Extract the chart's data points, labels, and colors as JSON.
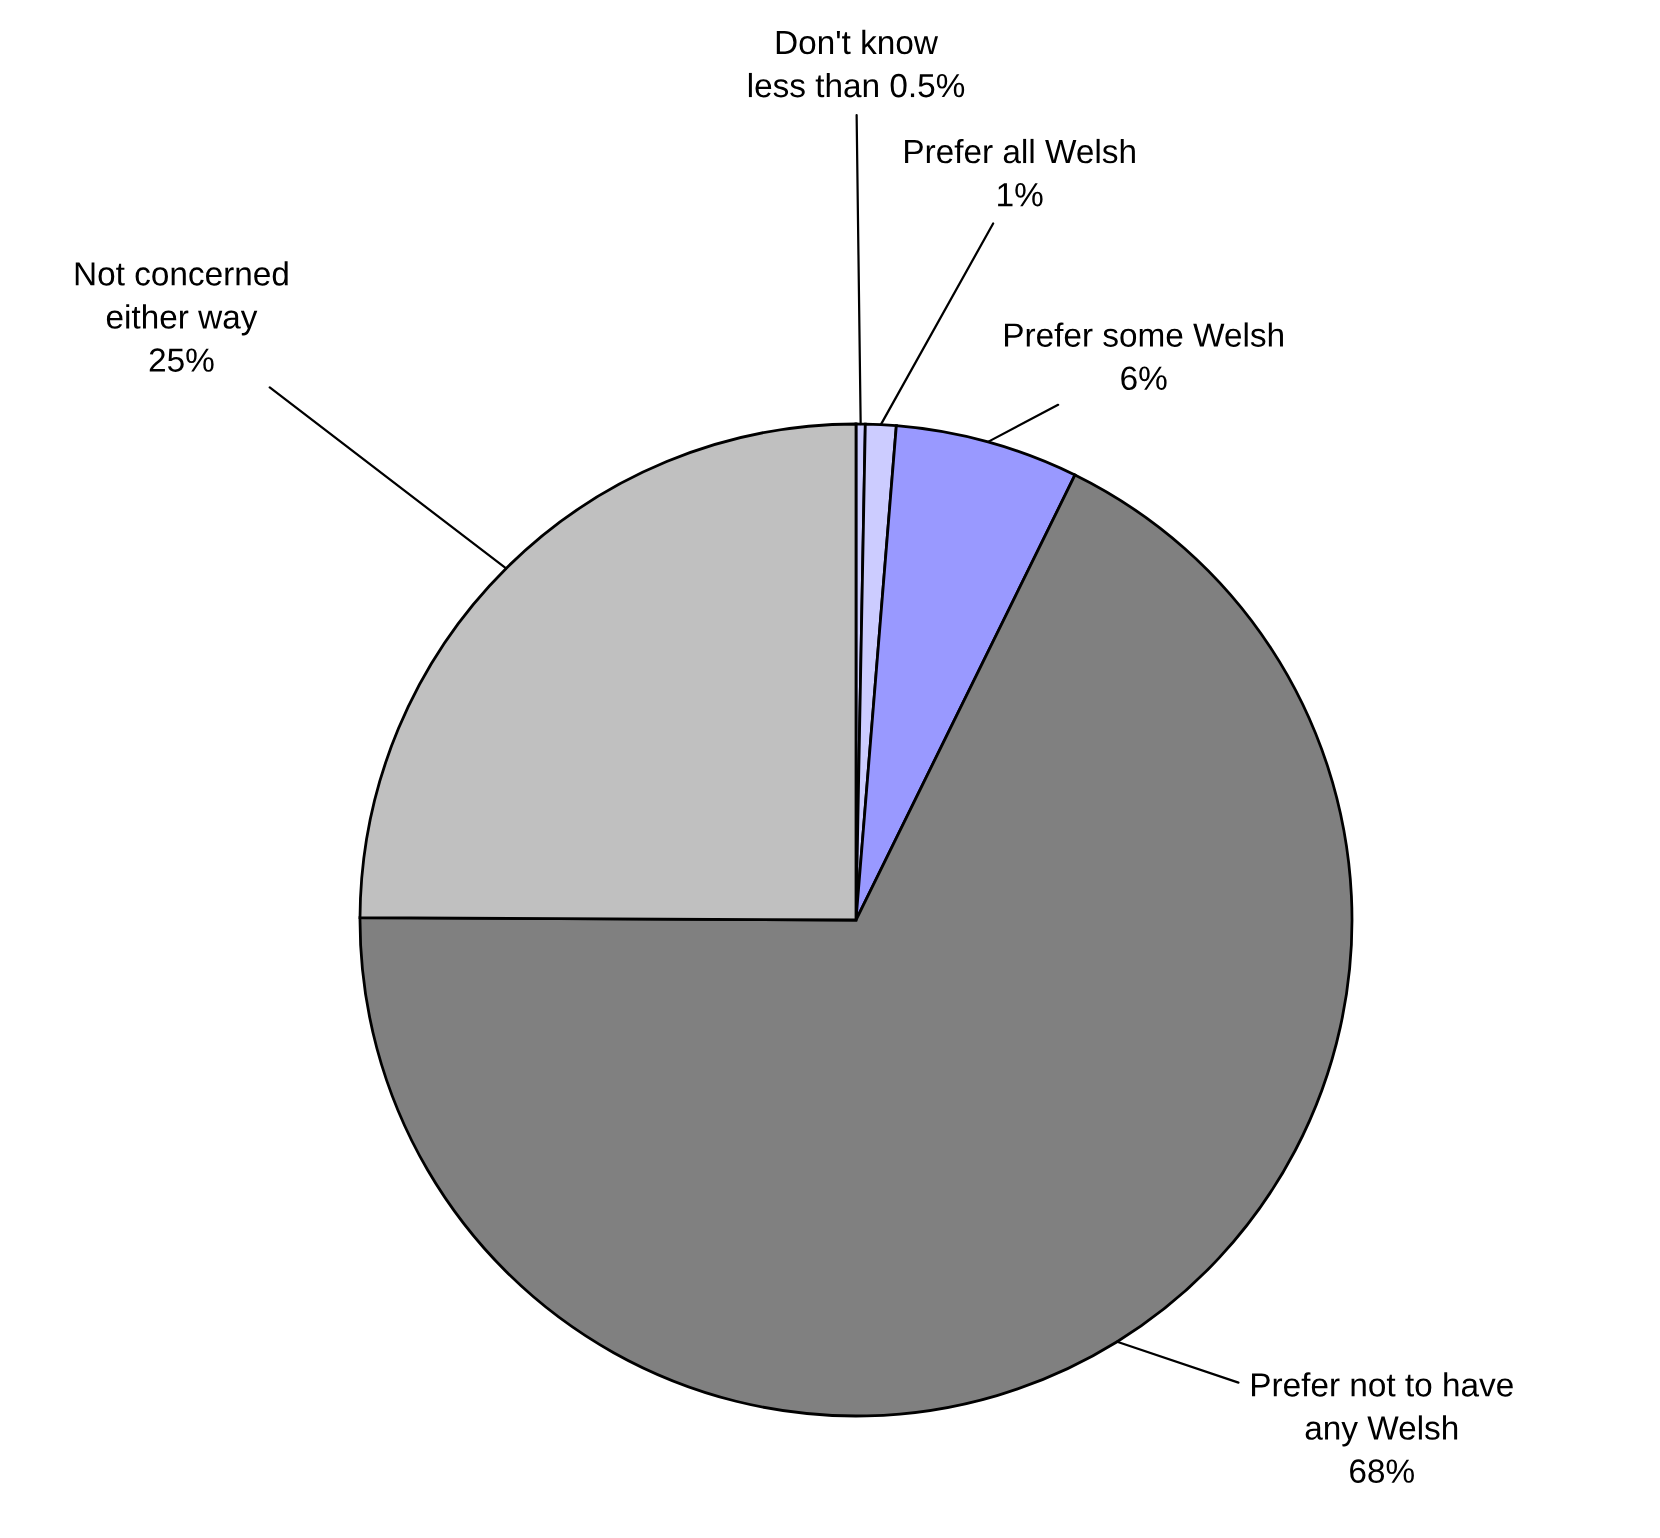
{
  "chart_data": {
    "type": "pie",
    "categories": [
      "Don't know",
      "Prefer all Welsh",
      "Prefer some Welsh",
      "Prefer not to have any Welsh",
      "Not concerned either way"
    ],
    "values": [
      0.3,
      1,
      6,
      68,
      25
    ],
    "value_labels": [
      "less than 0.5%",
      "1%",
      "6%",
      "68%",
      "25%"
    ],
    "colors": [
      "#ccccff",
      "#ccccff",
      "#9999ff",
      "#808080",
      "#c0c0c0"
    ],
    "legend": false
  }
}
